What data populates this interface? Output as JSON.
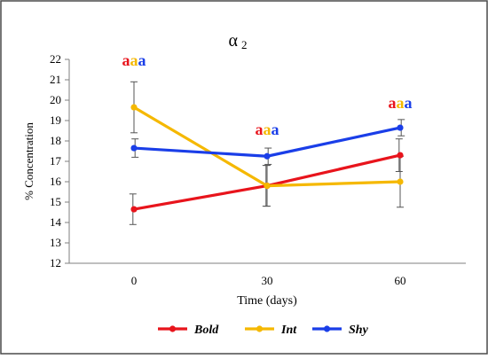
{
  "chart_data": {
    "type": "line",
    "title": "α",
    "title_subscript": "2",
    "xlabel": "Time (days)",
    "ylabel": "% Concentration",
    "categories": [
      "0",
      "30",
      "60"
    ],
    "ylim": [
      12,
      22
    ],
    "yticks": [
      "12",
      "13",
      "14",
      "15",
      "16",
      "17",
      "18",
      "19",
      "20",
      "21",
      "22"
    ],
    "grid": false,
    "legend_position": "bottom",
    "series": [
      {
        "name": "Bold",
        "color": "#e8141c",
        "values": [
          14.65,
          15.8,
          17.3
        ],
        "errors": [
          0.75,
          1.0,
          0.8
        ]
      },
      {
        "name": "Int",
        "color": "#f5b800",
        "values": [
          19.65,
          15.8,
          16.0
        ],
        "errors": [
          1.25,
          1.0,
          1.25
        ]
      },
      {
        "name": "Shy",
        "color": "#1a3ee8",
        "values": [
          17.65,
          17.25,
          18.65
        ],
        "errors": [
          0.45,
          0.4,
          0.4
        ]
      }
    ],
    "annotations": [
      {
        "x": "0",
        "y": 21.7,
        "letters": [
          {
            "text": "a",
            "color": "#e8141c"
          },
          {
            "text": "a",
            "color": "#f5b800"
          },
          {
            "text": "a",
            "color": "#1a3ee8"
          }
        ]
      },
      {
        "x": "30",
        "y": 18.3,
        "letters": [
          {
            "text": "a",
            "color": "#e8141c"
          },
          {
            "text": "a",
            "color": "#f5b800"
          },
          {
            "text": "a",
            "color": "#1a3ee8"
          }
        ]
      },
      {
        "x": "60",
        "y": 19.6,
        "letters": [
          {
            "text": "a",
            "color": "#e8141c"
          },
          {
            "text": "a",
            "color": "#f5b800"
          },
          {
            "text": "a",
            "color": "#1a3ee8"
          }
        ]
      }
    ]
  }
}
